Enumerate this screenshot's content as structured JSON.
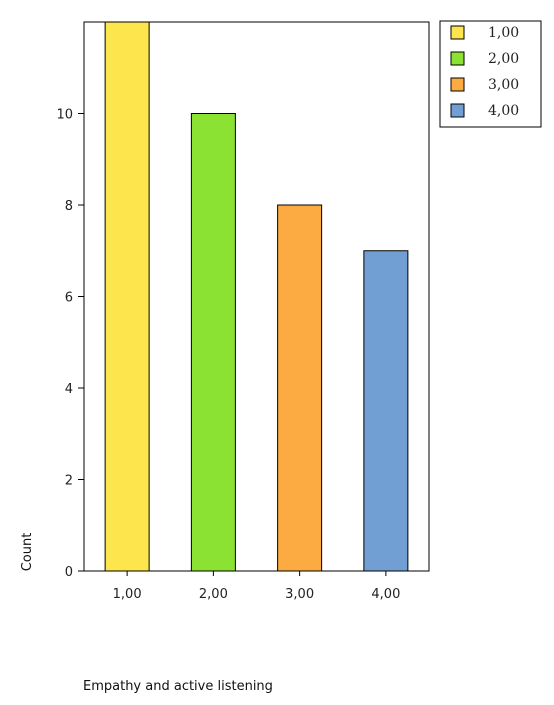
{
  "chart_data": {
    "type": "bar",
    "categories": [
      "1,00",
      "2,00",
      "3,00",
      "4,00"
    ],
    "values": [
      12,
      10,
      8,
      7
    ],
    "colors": [
      "#fce54d",
      "#8be232",
      "#fbab42",
      "#729fd3"
    ],
    "xlabel": "Empathy and active listening",
    "ylabel": "Count",
    "ylim": [
      0,
      12
    ],
    "yticks": [
      "0",
      "2",
      "4",
      "6",
      "8",
      "10"
    ],
    "grid": false,
    "legend": {
      "placement": "top-right",
      "entries": [
        "1,00",
        "2,00",
        "3,00",
        "4,00"
      ]
    }
  }
}
